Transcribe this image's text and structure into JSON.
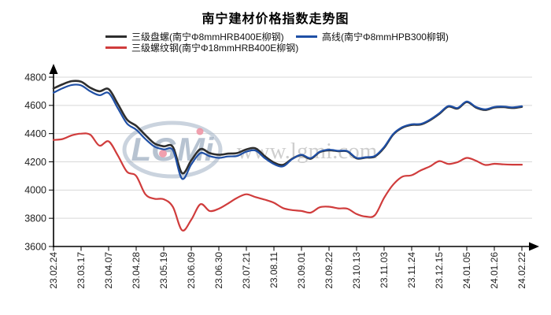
{
  "chart_data": {
    "type": "line",
    "title": "南宁建材价格指数走势图",
    "xlabel": "",
    "ylabel": "",
    "ylim": [
      3600,
      4800
    ],
    "y_ticks": [
      3600,
      3800,
      4000,
      4200,
      4400,
      4600,
      4800
    ],
    "grid": "horizontal",
    "legend_position": "top",
    "x_tick_labels": [
      "23.02.24",
      "23.03.17",
      "23.04.07",
      "23.04.28",
      "23.05.19",
      "23.06.09",
      "23.06.30",
      "23.07.21",
      "23.08.11",
      "23.09.01",
      "23.09.22",
      "23.10.13",
      "23.11.03",
      "23.11.24",
      "23.12.15",
      "24.01.05",
      "24.01.26",
      "24.02.22"
    ],
    "points_per_tick": 3,
    "series": [
      {
        "name": "三级盘螺(南宁Φ8mmHRB400E柳钢)",
        "color": "#2e2e2e",
        "values": [
          4720,
          4750,
          4772,
          4768,
          4725,
          4700,
          4715,
          4610,
          4500,
          4455,
          4390,
          4330,
          4310,
          4305,
          4120,
          4210,
          4290,
          4262,
          4250,
          4258,
          4262,
          4288,
          4295,
          4240,
          4195,
          4178,
          4222,
          4248,
          4222,
          4270,
          4282,
          4276,
          4274,
          4225,
          4230,
          4238,
          4300,
          4395,
          4442,
          4462,
          4465,
          4495,
          4540,
          4592,
          4578,
          4625,
          4585,
          4568,
          4585,
          4588,
          4582,
          4590
        ]
      },
      {
        "name": "高线(南宁Φ8mmHPB300柳钢)",
        "color": "#1f4fa5",
        "values": [
          4690,
          4722,
          4745,
          4742,
          4700,
          4672,
          4688,
          4580,
          4472,
          4428,
          4362,
          4308,
          4288,
          4282,
          4080,
          4182,
          4262,
          4240,
          4228,
          4238,
          4242,
          4272,
          4280,
          4226,
          4184,
          4168,
          4220,
          4250,
          4226,
          4272,
          4286,
          4278,
          4276,
          4228,
          4233,
          4242,
          4305,
          4398,
          4446,
          4466,
          4469,
          4499,
          4544,
          4596,
          4582,
          4628,
          4589,
          4572,
          4589,
          4592,
          4586,
          4594
        ]
      },
      {
        "name": "三级螺纹钢(南宁Φ18mmHRB400E柳钢)",
        "color": "#d03c3c",
        "values": [
          4355,
          4362,
          4388,
          4400,
          4392,
          4315,
          4345,
          4245,
          4130,
          4100,
          3970,
          3938,
          3935,
          3880,
          3715,
          3790,
          3900,
          3852,
          3868,
          3905,
          3945,
          3970,
          3950,
          3932,
          3910,
          3872,
          3858,
          3852,
          3840,
          3878,
          3882,
          3870,
          3868,
          3830,
          3812,
          3822,
          3945,
          4040,
          4095,
          4105,
          4140,
          4168,
          4205,
          4185,
          4198,
          4228,
          4208,
          4178,
          4186,
          4182,
          4180,
          4180
        ]
      }
    ],
    "watermark": {
      "logo_text": "LGMi",
      "url_text": "www.lgmi.com"
    },
    "colors": {
      "gridline": "#d8d8d8",
      "axis": "#000000",
      "tick_label": "#222222",
      "watermark_gray": "#9fafc2",
      "watermark_url": "#c9c9c9",
      "watermark_pink": "#ef8fa0"
    }
  }
}
